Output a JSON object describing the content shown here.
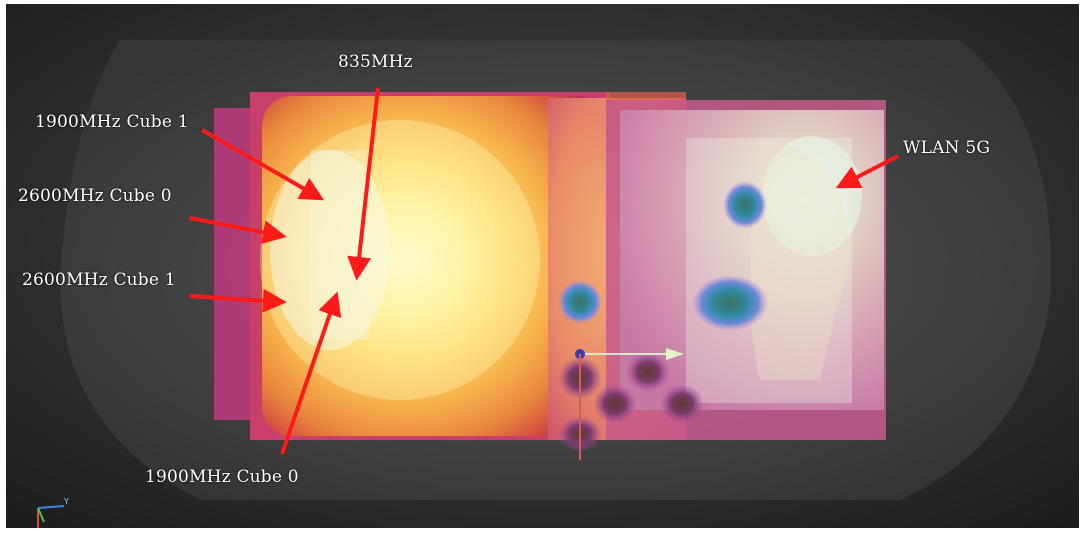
{
  "labels": {
    "mhz835": "835MHz",
    "cube1900_1": "1900MHz Cube 1",
    "cube2600_0": "2600MHz Cube 0",
    "cube2600_1": "2600MHz Cube 1",
    "cube1900_0": "1900MHz Cube 0",
    "wlan5g": "WLAN 5G"
  },
  "colors": {
    "background": "#2b2b2b",
    "arrow": "#ff1a1a",
    "hot": "#fff6b0",
    "warm": "#f2a73a",
    "edge": "#c12a5a",
    "hotspot": "#2a7a8a"
  },
  "icons": {
    "axis_triad": "xyz-axis-icon"
  }
}
